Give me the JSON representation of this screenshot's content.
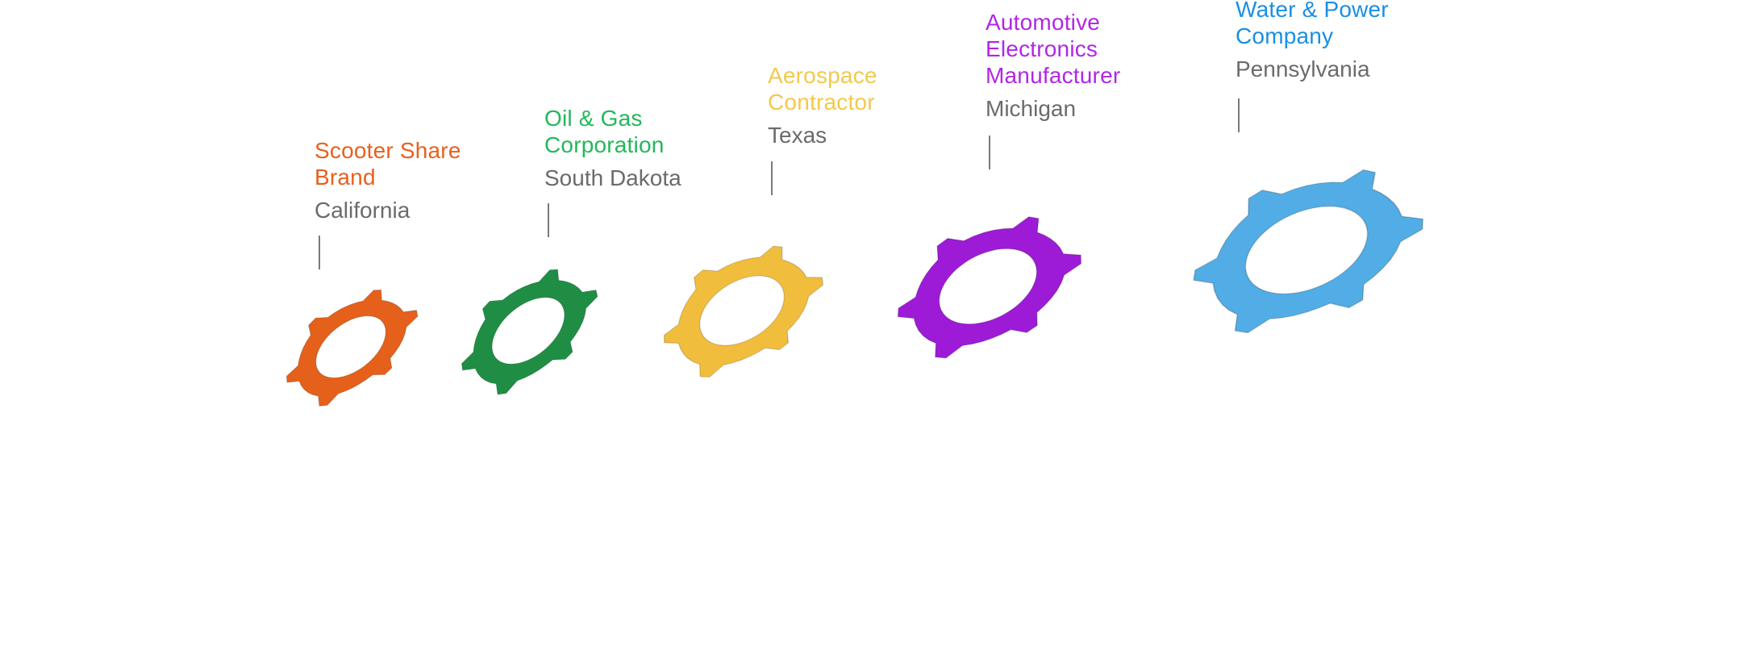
{
  "clients": [
    {
      "name": "Scooter Share Brand",
      "title_lines": [
        "Scooter Share",
        "Brand"
      ],
      "state": "California",
      "color": "#e8601c"
    },
    {
      "name": "Oil & Gas Corporation",
      "title_lines": [
        "Oil & Gas",
        "Corporation"
      ],
      "state": "South Dakota",
      "color": "#22b85a"
    },
    {
      "name": "Aerospace Contractor",
      "title_lines": [
        "Aerospace",
        "Contractor"
      ],
      "state": "Texas",
      "color": "#f2c94c"
    },
    {
      "name": "Automotive Electronics Manufacturer",
      "title_lines": [
        "Automotive",
        "Electronics",
        "Manufacturer"
      ],
      "state": "Michigan",
      "color": "#b126e6"
    },
    {
      "name": "Water & Power Company",
      "title_lines": [
        "Water & Power",
        "Company"
      ],
      "state": "Pennsylvania",
      "color": "#1a8fe3"
    }
  ],
  "gear_colors": [
    "#e4601b",
    "#1f8e44",
    "#f1bd3d",
    "#9d1bd6",
    "#52ade6"
  ],
  "icons": [
    "gasket-icon"
  ]
}
